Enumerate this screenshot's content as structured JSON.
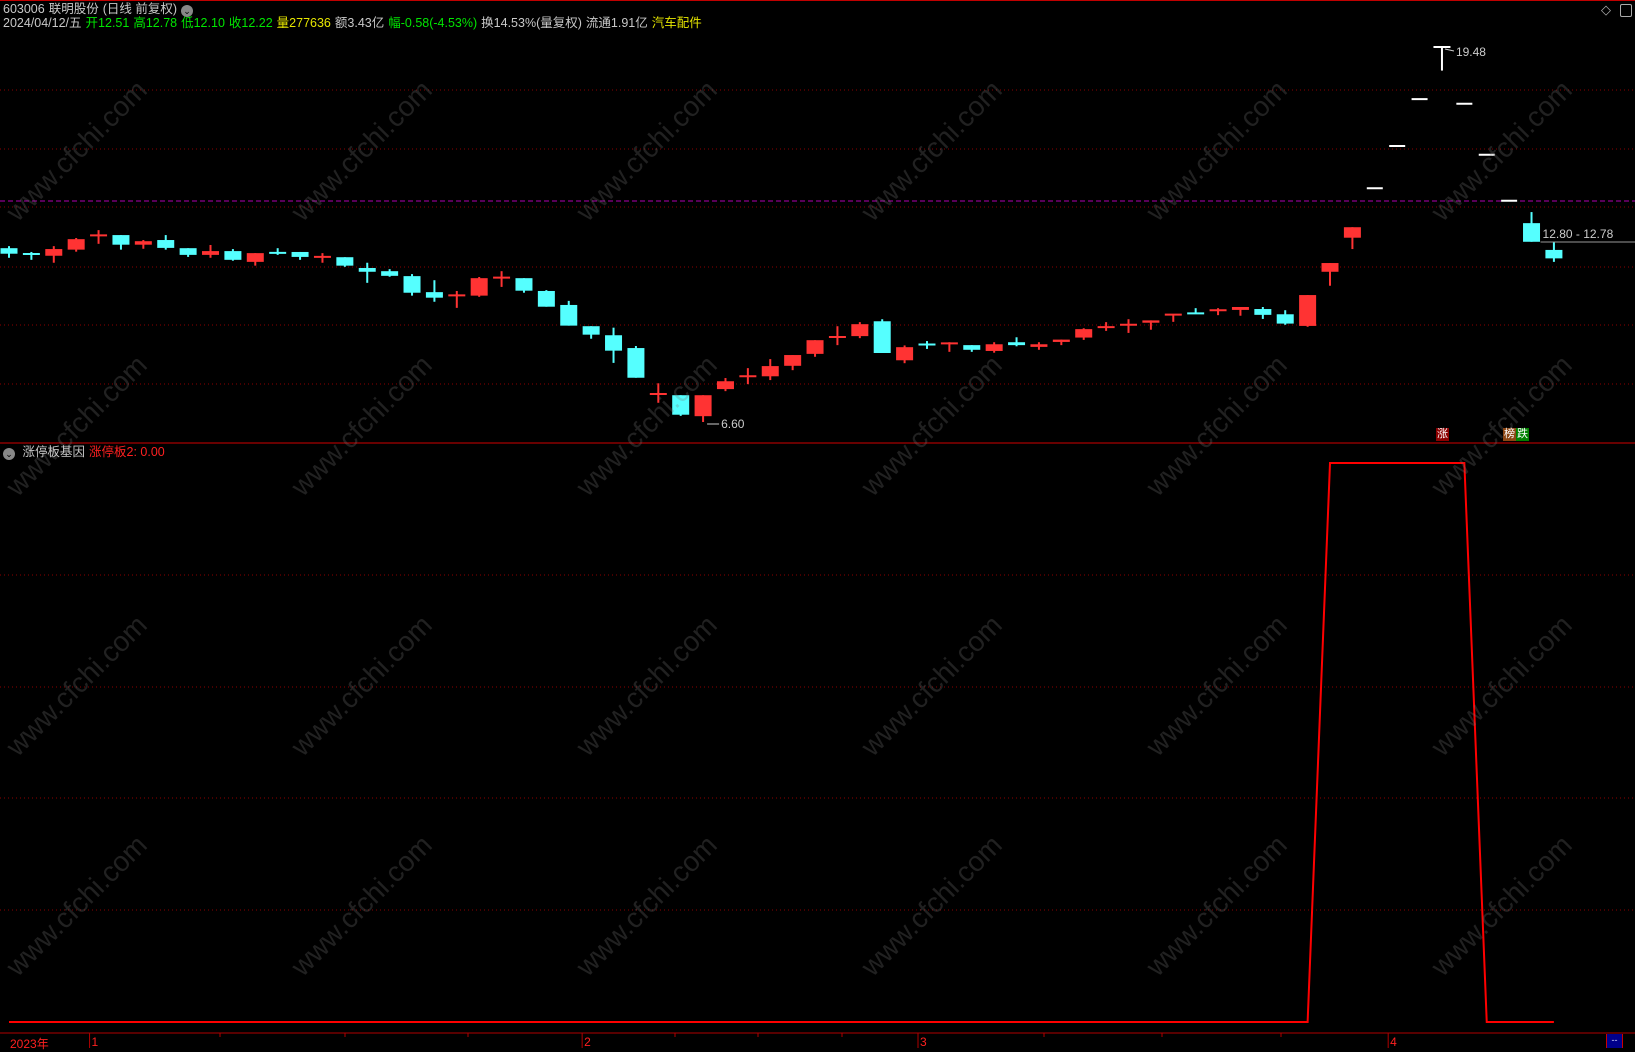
{
  "header": {
    "code": "603006",
    "name": "联明股份",
    "mode": "(日线 前复权)",
    "date": "2024/04/12/五",
    "open": "开12.51",
    "high": "高12.78",
    "low": "低12.10",
    "close": "收12.22",
    "volume": "量277636",
    "amount": "额3.43亿",
    "change": "幅-0.58(-4.53%)",
    "turnover": "换14.53%(量复权)",
    "float": "流通1.91亿",
    "sector": "汽车配件"
  },
  "price_panel": {
    "max_label": "19.48",
    "min_label": "6.60",
    "current_label": "12.80 - 12.78",
    "colors": {
      "up": "#ff3333",
      "down": "#55ffff",
      "limit": "#ffffff",
      "grid": "#8b0000",
      "ref_line": "#b000b0"
    },
    "ref_price": 14.19,
    "badges": [
      {
        "text": "涨",
        "color": "#8b0000"
      },
      {
        "text": "榜",
        "color": "#8b4513"
      },
      {
        "text": "跌",
        "color": "#008000"
      }
    ]
  },
  "candles": [
    [
      12.57,
      12.64,
      12.24,
      12.38
    ],
    [
      12.37,
      12.44,
      12.17,
      12.36
    ],
    [
      12.31,
      12.64,
      12.07,
      12.54
    ],
    [
      12.52,
      12.92,
      12.45,
      12.88
    ],
    [
      12.99,
      13.19,
      12.72,
      13.01
    ],
    [
      13.02,
      13.02,
      12.52,
      12.69
    ],
    [
      12.69,
      12.85,
      12.55,
      12.81
    ],
    [
      12.85,
      13.02,
      12.52,
      12.58
    ],
    [
      12.57,
      12.57,
      12.27,
      12.34
    ],
    [
      12.34,
      12.68,
      12.24,
      12.47
    ],
    [
      12.47,
      12.54,
      12.14,
      12.17
    ],
    [
      12.1,
      12.4,
      11.97,
      12.4
    ],
    [
      12.41,
      12.57,
      12.34,
      12.4
    ],
    [
      12.44,
      12.44,
      12.17,
      12.27
    ],
    [
      12.26,
      12.4,
      12.07,
      12.27
    ],
    [
      12.26,
      12.26,
      11.93,
      11.97
    ],
    [
      11.89,
      12.07,
      11.38,
      11.76
    ],
    [
      11.78,
      11.85,
      11.59,
      11.62
    ],
    [
      11.61,
      11.68,
      10.94,
      11.04
    ],
    [
      11.06,
      11.47,
      10.73,
      10.87
    ],
    [
      10.94,
      11.1,
      10.52,
      10.95
    ],
    [
      10.94,
      11.58,
      10.9,
      11.54
    ],
    [
      11.55,
      11.78,
      11.24,
      11.56
    ],
    [
      11.54,
      11.54,
      11.04,
      11.11
    ],
    [
      11.1,
      11.13,
      10.56,
      10.56
    ],
    [
      10.62,
      10.76,
      9.91,
      9.91
    ],
    [
      9.89,
      9.89,
      9.46,
      9.6
    ],
    [
      9.58,
      9.84,
      8.63,
      9.05
    ],
    [
      9.14,
      9.21,
      8.12,
      8.12
    ],
    [
      7.55,
      7.93,
      7.26,
      7.56
    ],
    [
      7.52,
      7.52,
      6.81,
      6.85
    ],
    [
      6.8,
      7.52,
      6.6,
      7.52
    ],
    [
      7.73,
      8.11,
      7.66,
      8.0
    ],
    [
      8.15,
      8.45,
      7.9,
      8.17
    ],
    [
      8.17,
      8.76,
      8.04,
      8.52
    ],
    [
      8.53,
      8.9,
      8.38,
      8.9
    ],
    [
      8.94,
      9.41,
      8.84,
      9.41
    ],
    [
      9.51,
      9.89,
      9.24,
      9.52
    ],
    [
      9.55,
      10.03,
      9.48,
      9.96
    ],
    [
      10.06,
      10.13,
      8.97,
      8.97
    ],
    [
      8.72,
      9.23,
      8.62,
      9.17
    ],
    [
      9.26,
      9.38,
      9.11,
      9.25
    ],
    [
      9.28,
      9.34,
      9.01,
      9.3
    ],
    [
      9.24,
      9.24,
      9.01,
      9.08
    ],
    [
      9.04,
      9.34,
      8.98,
      9.27
    ],
    [
      9.34,
      9.51,
      9.2,
      9.24
    ],
    [
      9.18,
      9.34,
      9.08,
      9.27
    ],
    [
      9.35,
      9.43,
      9.24,
      9.43
    ],
    [
      9.5,
      9.82,
      9.42,
      9.79
    ],
    [
      9.84,
      10.03,
      9.73,
      9.86
    ],
    [
      9.92,
      10.13,
      9.66,
      9.94
    ],
    [
      10.01,
      10.09,
      9.77,
      10.09
    ],
    [
      10.25,
      10.29,
      10.04,
      10.29
    ],
    [
      10.33,
      10.51,
      10.31,
      10.31
    ],
    [
      10.38,
      10.51,
      10.27,
      10.44
    ],
    [
      10.45,
      10.55,
      10.25,
      10.55
    ],
    [
      10.48,
      10.55,
      10.14,
      10.28
    ],
    [
      10.3,
      10.44,
      9.94,
      9.98
    ],
    [
      9.9,
      10.96,
      9.87,
      10.96
    ],
    [
      11.76,
      12.06,
      11.28,
      12.06
    ],
    [
      12.93,
      13.29,
      12.54,
      13.29
    ],
    [
      14.63,
      14.63,
      14.63,
      14.63
    ],
    [
      16.08,
      16.08,
      16.08,
      16.08
    ],
    [
      17.69,
      17.69,
      17.69,
      17.69
    ],
    [
      19.48,
      19.48,
      18.67,
      19.48
    ],
    [
      17.53,
      17.53,
      17.53,
      17.53
    ],
    [
      15.78,
      15.78,
      15.78,
      15.78
    ],
    [
      14.2,
      14.2,
      14.2,
      14.2
    ],
    [
      13.43,
      13.81,
      12.79,
      12.79
    ],
    [
      12.51,
      12.78,
      12.1,
      12.22
    ]
  ],
  "indicator": {
    "title": "涨停板基因",
    "value_label": "涨停板2: 0.00",
    "color": "#ff0000",
    "values": [
      0,
      0,
      0,
      0,
      0,
      0,
      0,
      0,
      0,
      0,
      0,
      0,
      0,
      0,
      0,
      0,
      0,
      0,
      0,
      0,
      0,
      0,
      0,
      0,
      0,
      0,
      0,
      0,
      0,
      0,
      0,
      0,
      0,
      0,
      0,
      0,
      0,
      0,
      0,
      0,
      0,
      0,
      0,
      0,
      0,
      0,
      0,
      0,
      0,
      0,
      0,
      0,
      0,
      0,
      0,
      0,
      0,
      0,
      0,
      1,
      1,
      1,
      1,
      1,
      1,
      1,
      0,
      0,
      0,
      0
    ]
  },
  "x_axis": {
    "labels": [
      {
        "text": "2023年",
        "index": 0
      },
      {
        "text": "1",
        "index": 4
      },
      {
        "text": "2",
        "index": 26
      },
      {
        "text": "3",
        "index": 41
      },
      {
        "text": "4",
        "index": 62
      }
    ],
    "corner": "--"
  },
  "watermark": "www.cfchi.com",
  "icons": [
    "diamond-icon",
    "panel-toggle-icon"
  ]
}
